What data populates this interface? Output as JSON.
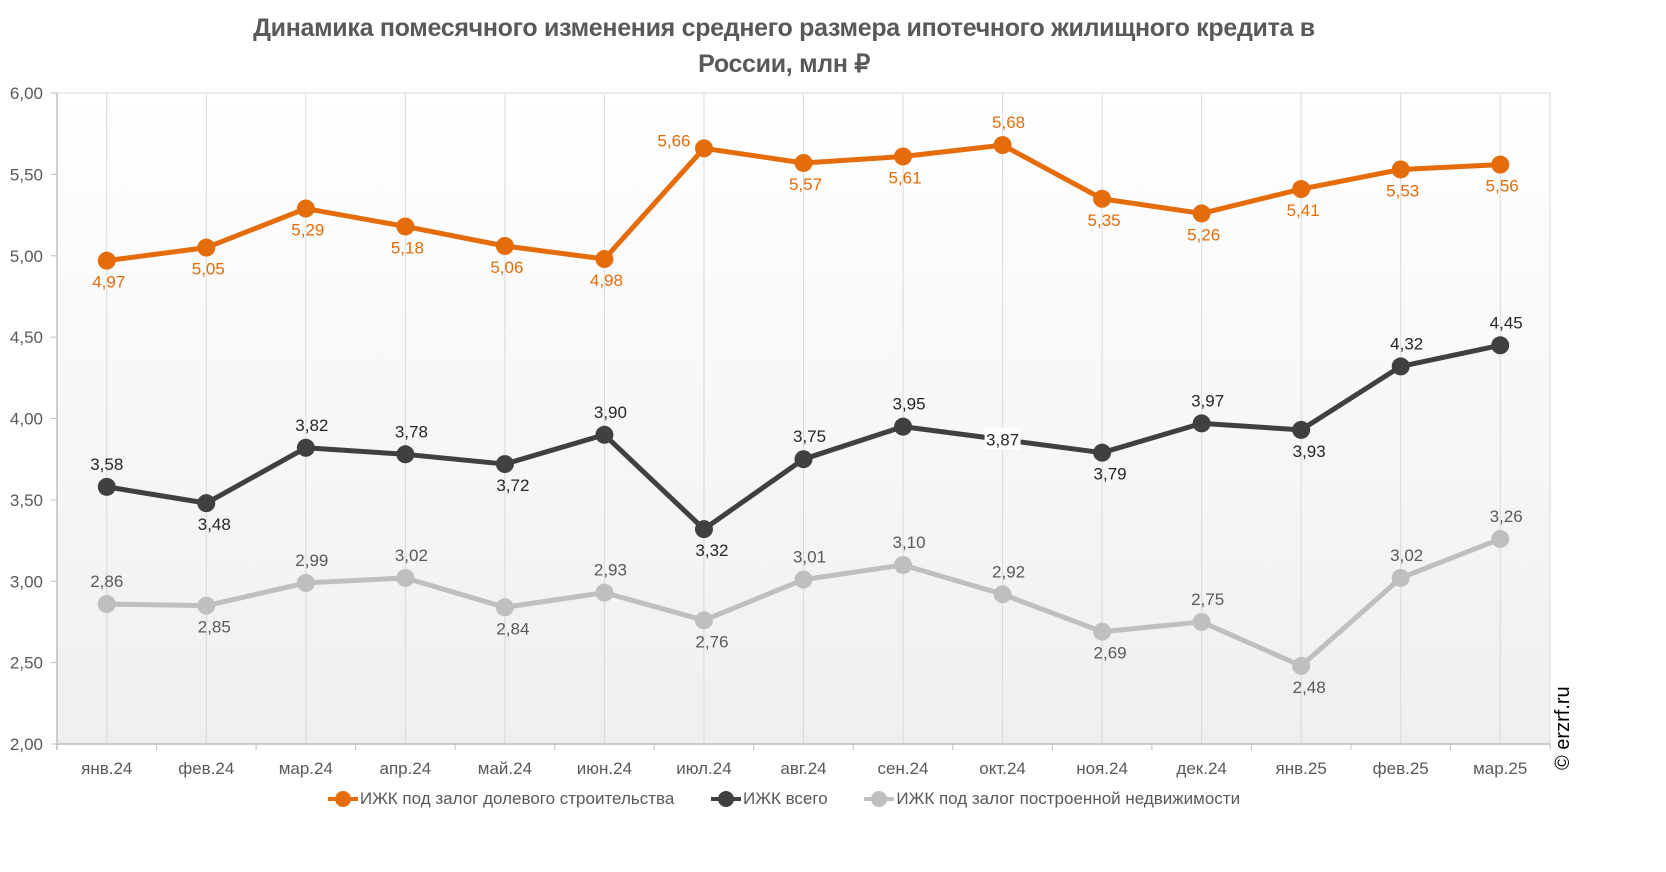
{
  "chart_data": {
    "type": "line",
    "title": "Динамика помесячного изменения среднего размера ипотечного жилищного кредита в России, млн ₽",
    "title_lines": [
      "Динамика помесячного изменения среднего размера ипотечного жилищного кредита в",
      "России, млн ₽"
    ],
    "xlabel": "",
    "ylabel": "",
    "ylim": [
      2.0,
      6.0
    ],
    "yticks": [
      "2,00",
      "2,50",
      "3,00",
      "3,50",
      "4,00",
      "4,50",
      "5,00",
      "5,50",
      "6,00"
    ],
    "ytick_values": [
      2.0,
      2.5,
      3.0,
      3.5,
      4.0,
      4.5,
      5.0,
      5.5,
      6.0
    ],
    "grid": "vertical",
    "legend_position": "bottom",
    "categories": [
      "янв.24",
      "фев.24",
      "мар.24",
      "апр.24",
      "май.24",
      "июн.24",
      "июл.24",
      "авг.24",
      "сен.24",
      "окт.24",
      "ноя.24",
      "дек.24",
      "янв.25",
      "фев.25",
      "мар.25"
    ],
    "series": [
      {
        "name": "ИЖК под залог долевого строительства",
        "color": "#E46C0A",
        "values": [
          4.97,
          5.05,
          5.29,
          5.18,
          5.06,
          4.98,
          5.66,
          5.57,
          5.61,
          5.68,
          5.35,
          5.26,
          5.41,
          5.53,
          5.56
        ],
        "labels": [
          "4,97",
          "5,05",
          "5,29",
          "5,18",
          "5,06",
          "4,98",
          "5,66",
          "5,57",
          "5,61",
          "5,68",
          "5,35",
          "5,26",
          "5,41",
          "5,53",
          "5,56"
        ],
        "label_pos": [
          "below",
          "below",
          "below",
          "below",
          "below",
          "below",
          "left-above",
          "below",
          "below",
          "above",
          "below",
          "below",
          "below",
          "below",
          "below"
        ]
      },
      {
        "name": "ИЖК всего",
        "color": "#404040",
        "values": [
          3.58,
          3.48,
          3.82,
          3.78,
          3.72,
          3.9,
          3.32,
          3.75,
          3.95,
          3.87,
          3.79,
          3.97,
          3.93,
          4.32,
          4.45
        ],
        "labels": [
          "3,58",
          "3,48",
          "3,82",
          "3,78",
          "3,72",
          "3,90",
          "3,32",
          "3,75",
          "3,95",
          "3,87",
          "3,79",
          "3,97",
          "3,93",
          "4,32",
          "4,45"
        ],
        "label_pos": [
          "above",
          "below",
          "above",
          "above",
          "below",
          "above",
          "below",
          "above",
          "above",
          "center",
          "below",
          "above",
          "below",
          "above",
          "above"
        ]
      },
      {
        "name": "ИЖК под залог построенной недвижимости",
        "color": "#BFBFBF",
        "values": [
          2.86,
          2.85,
          2.99,
          3.02,
          2.84,
          2.93,
          2.76,
          3.01,
          3.1,
          2.92,
          2.69,
          2.75,
          2.48,
          3.02,
          3.26
        ],
        "labels": [
          "2,86",
          "2,85",
          "2,99",
          "3,02",
          "2,84",
          "2,93",
          "2,76",
          "3,01",
          "3,10",
          "2,92",
          "2,69",
          "2,75",
          "2,48",
          "3,02",
          "3,26"
        ],
        "label_pos": [
          "above",
          "below",
          "above",
          "above",
          "below",
          "above",
          "below",
          "above",
          "above",
          "above",
          "below",
          "above",
          "below",
          "above",
          "above"
        ]
      }
    ]
  },
  "watermark": "© erzrf.ru"
}
